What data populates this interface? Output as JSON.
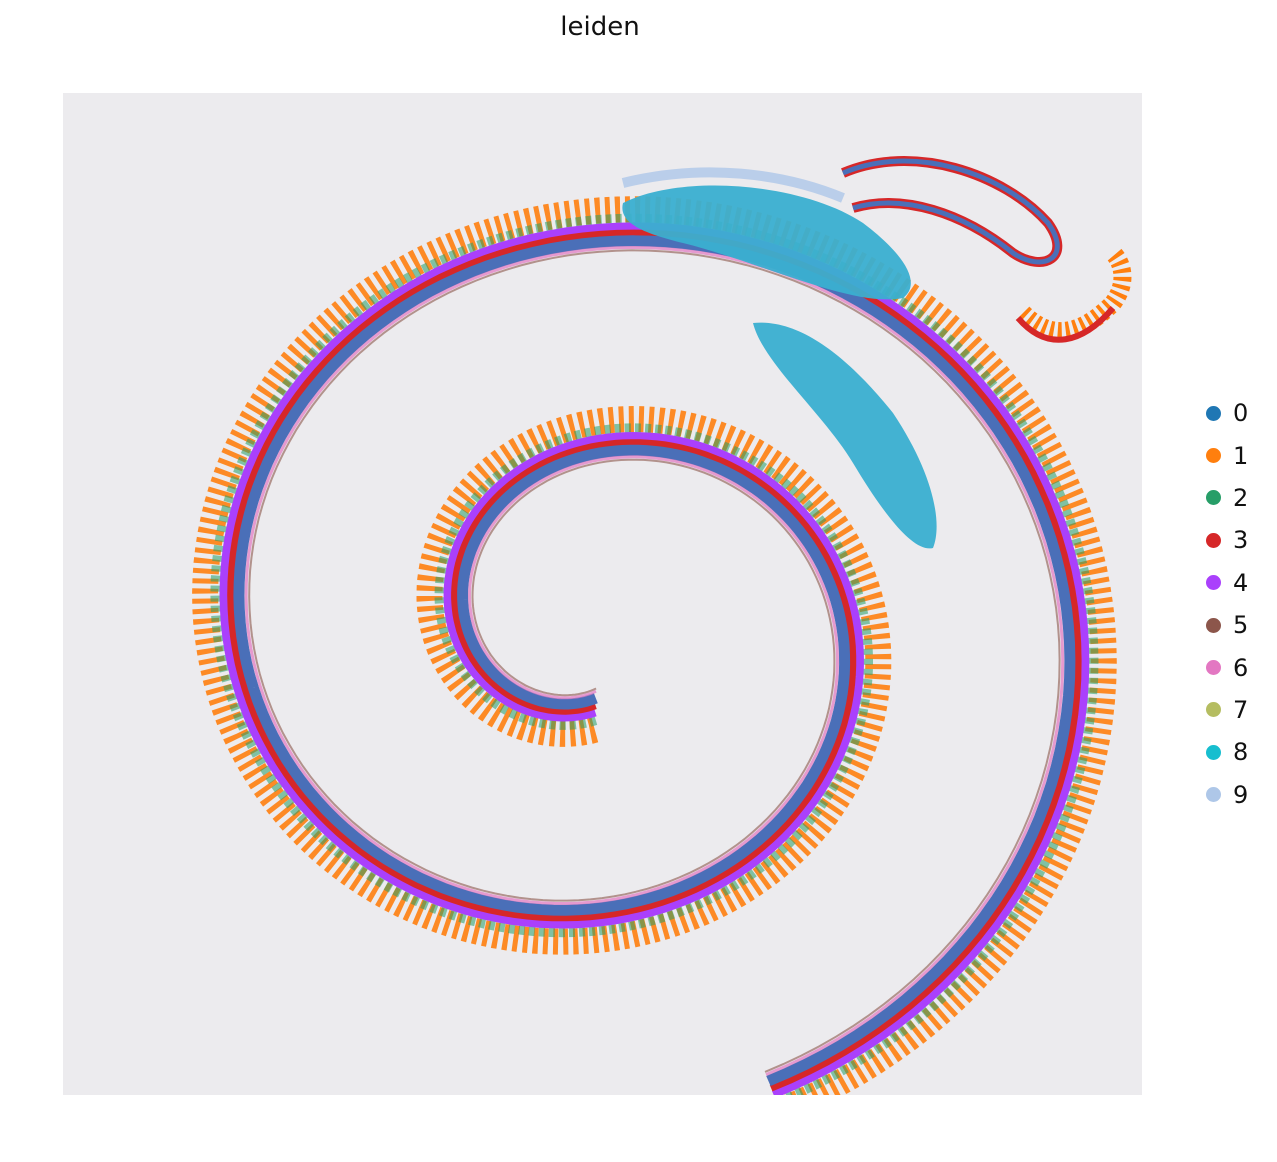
{
  "chart_data": {
    "type": "scatter",
    "title": "leiden",
    "background_color": "#ecebee",
    "legend_position": "right",
    "grid": false,
    "axes_visible": false,
    "legend": [
      {
        "label": "0",
        "color": "#1f77b4"
      },
      {
        "label": "1",
        "color": "#ff7f0e"
      },
      {
        "label": "2",
        "color": "#279e68"
      },
      {
        "label": "3",
        "color": "#d62728"
      },
      {
        "label": "4",
        "color": "#aa40fc"
      },
      {
        "label": "5",
        "color": "#8c564b"
      },
      {
        "label": "6",
        "color": "#e377c2"
      },
      {
        "label": "7",
        "color": "#b5bd61"
      },
      {
        "label": "8",
        "color": "#17becf"
      },
      {
        "label": "9",
        "color": "#aec7e8"
      }
    ]
  }
}
